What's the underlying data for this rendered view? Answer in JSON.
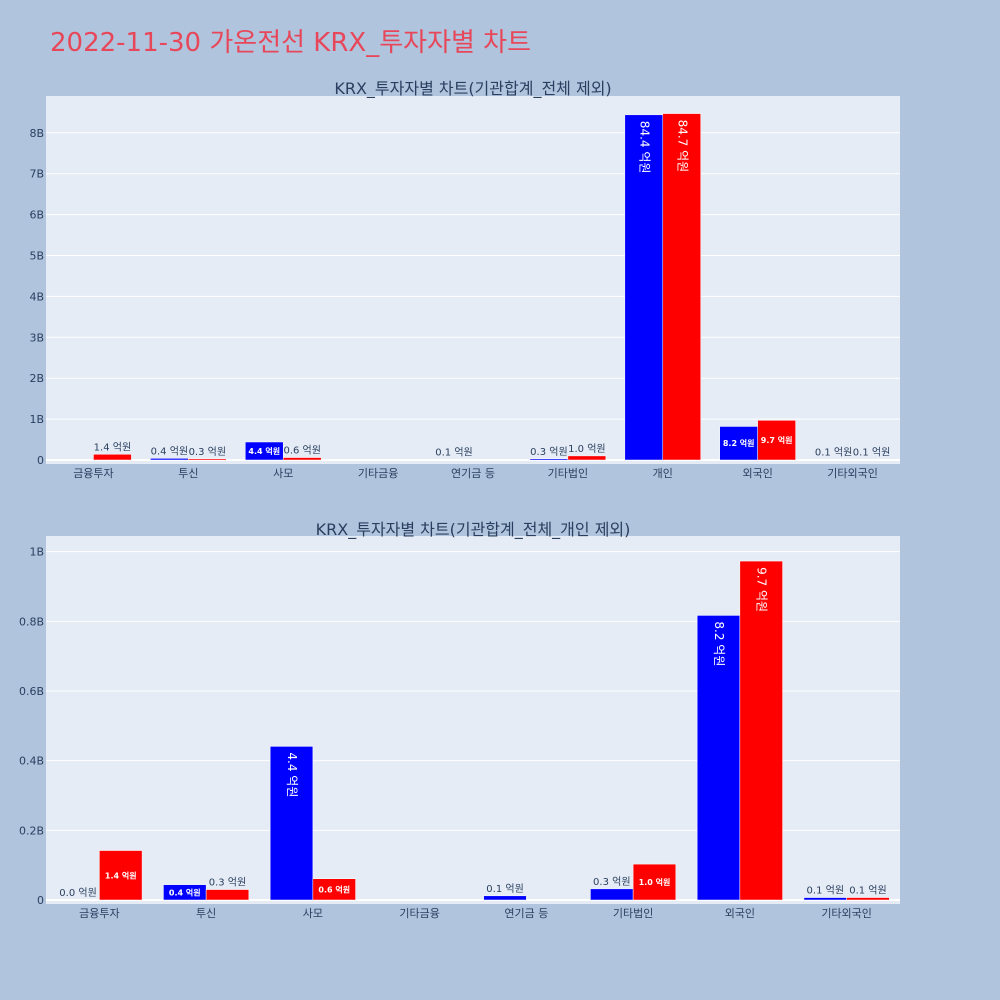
{
  "title": "2022-11-30 가온전선 KRX_투자자별 차트",
  "colors": {
    "series_a": "#0000ff",
    "series_b": "#ff0000",
    "plot_bg": "#e5ecf6",
    "page_bg": "#b0c4de",
    "title": "#e8475a"
  },
  "chart_data": [
    {
      "type": "bar",
      "title": "KRX_투자자별 차트(기관합계_전체 제외)",
      "categories": [
        "금융투자",
        "투신",
        "사모",
        "기타금융",
        "연기금 등",
        "기타법인",
        "개인",
        "외국인",
        "기타외국인"
      ],
      "series": [
        {
          "values": [
            0.0,
            0.04,
            0.44,
            0,
            0.01,
            0.03,
            8.44,
            0.82,
            0.01
          ],
          "labels": [
            "",
            "0.4 억원",
            "4.4 억원",
            "",
            "0.1 억원",
            "0.3 억원",
            "84.4 억원",
            "8.2 억원",
            "0.1 억원"
          ]
        },
        {
          "values": [
            0.14,
            0.03,
            0.06,
            0,
            0,
            0.1,
            8.47,
            0.97,
            0.01
          ],
          "labels": [
            "1.4 억원",
            "0.3 억원",
            "0.6 억원",
            "",
            "",
            "1.0 억원",
            "84.7 억원",
            "9.7 억원",
            "0.1 억원"
          ]
        }
      ],
      "ylim": [
        0,
        8.9
      ],
      "yticks": [
        0,
        1,
        2,
        3,
        4,
        5,
        6,
        7,
        8
      ],
      "ytick_labels": [
        "0",
        "1B",
        "2B",
        "3B",
        "4B",
        "5B",
        "6B",
        "7B",
        "8B"
      ],
      "grid": true,
      "legend": "none"
    },
    {
      "type": "bar",
      "title": "KRX_투자자별 차트(기관합계_전체_개인 제외)",
      "categories": [
        "금융투자",
        "투신",
        "사모",
        "기타금융",
        "연기금 등",
        "기타법인",
        "외국인",
        "기타외국인"
      ],
      "series": [
        {
          "values": [
            0.0,
            0.044,
            0.441,
            0,
            0.012,
            0.032,
            0.817,
            0.007
          ],
          "labels": [
            "0.0 억원",
            "0.4 억원",
            "4.4 억원",
            "",
            "0.1 억원",
            "0.3 억원",
            "8.2 억원",
            "0.1 억원"
          ]
        },
        {
          "values": [
            0.142,
            0.03,
            0.061,
            0,
            0,
            0.103,
            0.973,
            0.007
          ],
          "labels": [
            "1.4 억원",
            "0.3 억원",
            "0.6 억원",
            "",
            "",
            "1.0 억원",
            "9.7 억원",
            "0.1 억원"
          ]
        }
      ],
      "ylim": [
        0,
        1.045
      ],
      "yticks": [
        0,
        0.2,
        0.4,
        0.6,
        0.8,
        1.0
      ],
      "ytick_labels": [
        "0",
        "0.2B",
        "0.4B",
        "0.6B",
        "0.8B",
        "1B"
      ],
      "grid": true,
      "legend": "none"
    }
  ]
}
